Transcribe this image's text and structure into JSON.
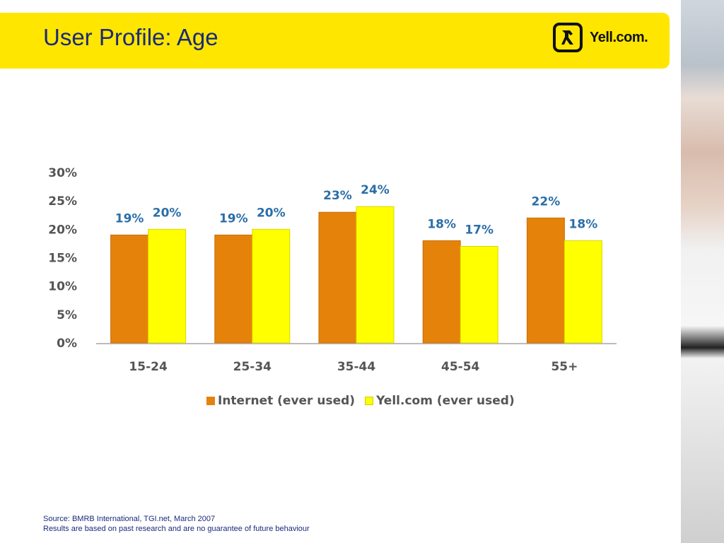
{
  "header": {
    "title": "User Profile: Age",
    "logo_text": "Yell.com."
  },
  "colors": {
    "header_bg": "#ffe600",
    "internet": "#e5820a",
    "yell": "#ffff00",
    "data_label": "#2a6ea8"
  },
  "chart_data": {
    "type": "bar",
    "categories": [
      "15-24",
      "25-34",
      "35-44",
      "45-54",
      "55+"
    ],
    "series": [
      {
        "name": "Internet (ever used)",
        "values": [
          19,
          19,
          23,
          18,
          22
        ],
        "color": "#e5820a"
      },
      {
        "name": "Yell.com (ever used)",
        "values": [
          20,
          20,
          24,
          17,
          18
        ],
        "color": "#ffff00"
      }
    ],
    "data_labels": [
      [
        "19%",
        "19%",
        "23%",
        "18%",
        "22%"
      ],
      [
        "20%",
        "20%",
        "24%",
        "17%",
        "18%"
      ]
    ],
    "ylim": [
      0,
      30
    ],
    "yticks": [
      0,
      5,
      10,
      15,
      20,
      25,
      30
    ],
    "ytick_labels": [
      "0%",
      "5%",
      "10%",
      "15%",
      "20%",
      "25%",
      "30%"
    ],
    "legend_position": "bottom",
    "grid": false
  },
  "footer": {
    "source": "Source: BMRB International,  TGI.net, March 2007",
    "disclaimer": "Results are based on past research and are no guarantee of future behaviour"
  }
}
